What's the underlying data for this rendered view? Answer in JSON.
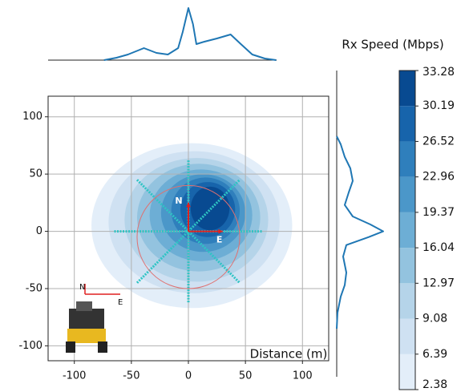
{
  "chart_data": {
    "type": "contour",
    "xlim": [
      -123,
      123
    ],
    "ylim": [
      -113,
      118
    ],
    "xticks": [
      -100,
      -50,
      0,
      50,
      100
    ],
    "yticks": [
      -100,
      -50,
      0,
      50,
      100
    ],
    "grid": true,
    "annotation": "Distance (m)",
    "colorbar_label": "Rx Speed (Mbps)",
    "levels": [
      2.38,
      6.39,
      9.08,
      12.97,
      16.04,
      19.37,
      22.96,
      26.52,
      30.19,
      33.28
    ],
    "colors": [
      "#e3eef9",
      "#cfe1f2",
      "#b5d4e9",
      "#93c3df",
      "#6daed5",
      "#4b97c9",
      "#2f7fbc",
      "#1764ab",
      "#084a91"
    ],
    "regions": [
      {
        "x": 3,
        "y": 5,
        "rx": 88,
        "ry": 72
      },
      {
        "x": 5,
        "y": 8,
        "rx": 75,
        "ry": 62
      },
      {
        "x": 7,
        "y": 10,
        "rx": 63,
        "ry": 54
      },
      {
        "x": 9,
        "y": 12,
        "rx": 54,
        "ry": 47
      },
      {
        "x": 11,
        "y": 14,
        "rx": 45,
        "ry": 40
      },
      {
        "x": 13,
        "y": 16,
        "rx": 37,
        "ry": 34
      },
      {
        "x": 15,
        "y": 18,
        "rx": 30,
        "ry": 29
      },
      {
        "x": 17,
        "y": 19,
        "rx": 24,
        "ry": 24
      },
      {
        "x": 19,
        "y": 20,
        "rx": 17,
        "ry": 19
      }
    ],
    "route_color": "#2ec4c4",
    "routes": [
      {
        "x": [
          -65,
          65
        ],
        "y": [
          0,
          0
        ]
      },
      {
        "x": [
          0,
          0
        ],
        "y": [
          -62,
          62
        ]
      },
      {
        "x": [
          -45,
          45
        ],
        "y": [
          -45,
          45
        ]
      },
      {
        "x": [
          -45,
          45
        ],
        "y": [
          45,
          -45
        ]
      }
    ],
    "circle": {
      "x": 0,
      "y": -5,
      "r": 45,
      "color": "#e07070"
    },
    "arrow_color": "#e02020",
    "arrows": [
      {
        "label": "N",
        "x": 0,
        "y": 25
      },
      {
        "label": "E",
        "x": 30,
        "y": 0
      }
    ],
    "line_color": "#1f77b4",
    "top_marginal": {
      "x": [
        -74,
        -63,
        -53,
        -39,
        -28,
        -18,
        -9,
        -5,
        0,
        4,
        7,
        14,
        25,
        37,
        46,
        56,
        67,
        77
      ],
      "values": [
        0,
        3,
        7,
        15,
        9,
        7,
        15,
        35,
        65,
        45,
        20,
        23,
        27,
        32,
        20,
        7,
        2,
        0
      ]
    },
    "right_marginal": {
      "y": [
        83,
        76,
        65,
        55,
        44,
        34,
        23,
        13,
        6,
        0,
        -5,
        -12,
        -22,
        -36,
        -47,
        -57,
        -71,
        -85
      ],
      "values": [
        0,
        5,
        10,
        17,
        20,
        15,
        10,
        20,
        42,
        58,
        40,
        12,
        8,
        12,
        10,
        5,
        1,
        0
      ]
    }
  }
}
